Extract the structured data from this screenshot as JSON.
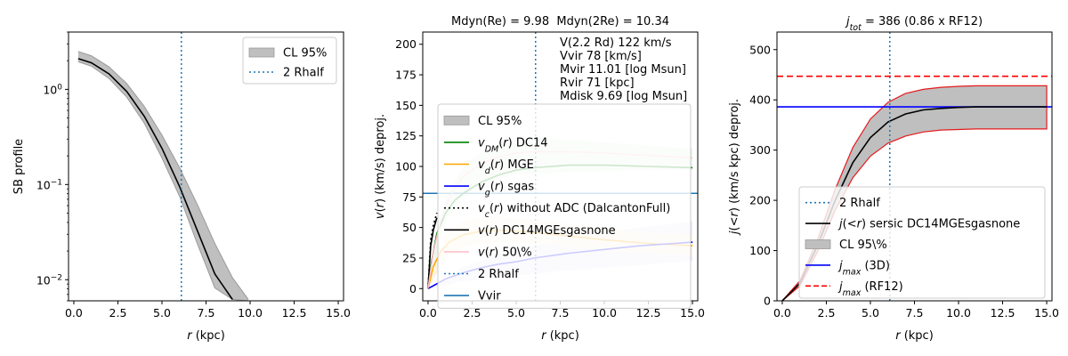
{
  "chart_data": [
    {
      "type": "line",
      "title": "",
      "xlabel": "r (kpc)",
      "ylabel": "SB profile",
      "xlim": [
        -0.3,
        15.3
      ],
      "yscale": "log",
      "ylim": [
        0.006,
        4.0
      ],
      "xticks": [
        "0.0",
        "2.5",
        "5.0",
        "7.5",
        "10.0",
        "12.5",
        "15.0"
      ],
      "xtick_values": [
        0,
        2.5,
        5,
        7.5,
        10,
        12.5,
        15
      ],
      "yticks": [
        {
          "label": "10^0",
          "value": 1
        },
        {
          "label": "10^-1",
          "value": 0.1
        },
        {
          "label": "10^-2",
          "value": 0.01
        }
      ],
      "series": [
        {
          "name": "SB",
          "color": "#000000",
          "x": [
            0.25,
            1,
            2,
            3,
            4,
            5,
            6,
            7,
            8,
            9
          ],
          "y": [
            2.1,
            1.9,
            1.45,
            0.95,
            0.52,
            0.24,
            0.095,
            0.033,
            0.0115,
            0.0062
          ]
        },
        {
          "name": "CL 95%",
          "kind": "band",
          "color": "#bfbfbf",
          "x": [
            0.25,
            1,
            2,
            3,
            4,
            5,
            6,
            7,
            8,
            9,
            9.9
          ],
          "low": [
            1.95,
            1.75,
            1.3,
            0.83,
            0.44,
            0.19,
            0.075,
            0.024,
            0.0082,
            0.0062,
            0.006
          ],
          "high": [
            2.5,
            2.25,
            1.72,
            1.15,
            0.66,
            0.33,
            0.15,
            0.062,
            0.024,
            0.0105,
            0.0062
          ]
        }
      ],
      "vline": {
        "x": 6.1,
        "label": "2 Rhalf",
        "color": "#1f77b4"
      },
      "legend": {
        "position": "top-right",
        "entries": [
          {
            "label": "CL 95%",
            "kind": "patch",
            "color": "#bfbfbf"
          },
          {
            "label": "2 Rhalf",
            "kind": "dotted",
            "color": "#1f77b4"
          }
        ]
      }
    },
    {
      "type": "line",
      "title": "Mdyn(Re) = 9.98  Mdyn(2Re) = 10.34",
      "xlabel": "r (kpc)",
      "ylabel": "v(r) (km/s) deproj.",
      "xlim": [
        -0.3,
        15.3
      ],
      "ylim": [
        -10,
        210
      ],
      "xticks": [
        "0.0",
        "2.5",
        "5.0",
        "7.5",
        "10.0",
        "12.5",
        "15.0"
      ],
      "xtick_values": [
        0,
        2.5,
        5,
        7.5,
        10,
        12.5,
        15
      ],
      "yticks": [
        "0",
        "25",
        "50",
        "75",
        "100",
        "125",
        "150",
        "175",
        "200"
      ],
      "ytick_values": [
        0,
        25,
        50,
        75,
        100,
        125,
        150,
        175,
        200
      ],
      "series": [
        {
          "name": "v_DM(r) DC14",
          "color": "#008000",
          "x": [
            0,
            0.2,
            0.5,
            1,
            1.5,
            2,
            3,
            4,
            5,
            6,
            8,
            10,
            12.5,
            15
          ],
          "y": [
            0,
            22,
            45,
            62,
            72,
            78,
            87,
            93,
            97,
            99,
            101,
            101,
            100,
            99
          ]
        },
        {
          "name": "v_d(r) MGE",
          "color": "#ffa500",
          "x": [
            0,
            0.3,
            0.7,
            1.2,
            2,
            3,
            4,
            5,
            6,
            8,
            10,
            12.5,
            15
          ],
          "y": [
            0,
            18,
            30,
            38,
            44,
            47,
            48,
            47,
            46,
            43,
            40,
            37,
            35
          ]
        },
        {
          "name": "v_g(r) sgas",
          "color": "#0000ff",
          "x": [
            0,
            1,
            2,
            3,
            4,
            5,
            6,
            8,
            10,
            12,
            14,
            15
          ],
          "y": [
            0,
            8,
            13,
            17,
            20,
            22,
            25,
            29,
            32,
            35,
            37,
            38
          ]
        },
        {
          "name": "v_c(r) without ADC (DalcantonFull)",
          "color": "#000000",
          "style": "dotted",
          "x": [
            0,
            0.15,
            0.3,
            0.5
          ],
          "y": [
            0,
            40,
            52,
            62
          ]
        },
        {
          "name": "v(r) DC14MGEsgasnone",
          "color": "#000000",
          "x": [
            0,
            0.15,
            0.3,
            0.5
          ],
          "y": [
            0,
            35,
            48,
            58
          ]
        },
        {
          "name": "v(r) 50\\%",
          "color": "#ffc0cb",
          "x": [
            0,
            0.3,
            0.7,
            1,
            1.5,
            2,
            3,
            4,
            5,
            6,
            8,
            10,
            12.5,
            15
          ],
          "y": [
            0,
            30,
            55,
            68,
            82,
            92,
            102,
            108,
            111,
            112,
            112,
            111,
            109,
            107
          ]
        },
        {
          "name": "CL 95%",
          "kind": "band",
          "color": "#e6f2e6",
          "x": [
            0,
            1,
            2,
            3,
            4,
            5,
            6,
            8,
            10,
            12.5,
            15
          ],
          "low": [
            0,
            55,
            75,
            85,
            90,
            93,
            94,
            95,
            96,
            97,
            97
          ],
          "high": [
            0,
            75,
            100,
            112,
            118,
            122,
            123,
            122,
            120,
            117,
            115
          ]
        },
        {
          "name": "CL 95% sgas",
          "kind": "band",
          "color": "#e6e6fa",
          "x": [
            0,
            2,
            4,
            6,
            8,
            10,
            12,
            15
          ],
          "low": [
            0,
            6,
            9,
            12,
            15,
            17,
            19,
            23
          ],
          "high": [
            0,
            18,
            28,
            35,
            40,
            46,
            50,
            55
          ]
        },
        {
          "name": "CL 95% MGE",
          "kind": "band",
          "color": "#fdf0d5",
          "x": [
            0,
            1,
            2,
            3,
            4,
            5,
            6,
            8,
            10,
            12.5,
            15
          ],
          "low": [
            0,
            25,
            33,
            37,
            38,
            38,
            37,
            34,
            31,
            29,
            27
          ],
          "high": [
            0,
            45,
            55,
            58,
            59,
            58,
            57,
            53,
            49,
            46,
            44
          ]
        }
      ],
      "vline": {
        "x": 6.1,
        "label": "2 Rhalf",
        "color": "#1f77b4"
      },
      "hline": {
        "y": 78,
        "label": "Vvir",
        "color": "#1f77b4"
      },
      "annotation": [
        "V(2.2 Rd) 122 km/s",
        "Vvir 78 [km/s]",
        "Mvir 11.01 [log Msun]",
        "Rvir 71 [kpc]",
        "Mdisk 9.69 [log Msun]"
      ],
      "legend": {
        "position": "lower-right",
        "entries": [
          {
            "label": "CL 95%",
            "kind": "patch",
            "color": "#bfbfbf"
          },
          {
            "label": "v_DM(r) DC14",
            "kind": "line",
            "color": "#008000"
          },
          {
            "label": "v_d(r) MGE",
            "kind": "line",
            "color": "#ffa500"
          },
          {
            "label": "v_g(r) sgas",
            "kind": "line",
            "color": "#0000ff"
          },
          {
            "label": "v_c(r) without ADC (DalcantonFull)",
            "kind": "dotted",
            "color": "#000000"
          },
          {
            "label": "v(r) DC14MGEsgasnone",
            "kind": "line",
            "color": "#000000"
          },
          {
            "label": "v(r) 50\\%",
            "kind": "line",
            "color": "#ffc0cb"
          },
          {
            "label": "2 Rhalf",
            "kind": "dotted",
            "color": "#1f77b4"
          },
          {
            "label": "Vvir",
            "kind": "line",
            "color": "#1f77b4"
          }
        ]
      }
    },
    {
      "type": "line",
      "title": "j_tot = 386 (0.86 x RF12)",
      "xlabel": "r (kpc)",
      "ylabel": "j(<r) (km/s kpc) deproj.",
      "xlim": [
        -0.3,
        15.3
      ],
      "ylim": [
        0,
        535
      ],
      "xticks": [
        "0.0",
        "2.5",
        "5.0",
        "7.5",
        "10.0",
        "12.5",
        "15.0"
      ],
      "xtick_values": [
        0,
        2.5,
        5,
        7.5,
        10,
        12.5,
        15
      ],
      "yticks": [
        "0",
        "100",
        "200",
        "300",
        "400",
        "500"
      ],
      "ytick_values": [
        0,
        100,
        200,
        300,
        400,
        500
      ],
      "series": [
        {
          "name": "j(<r) sersic DC14MGEsgasnone",
          "color": "#000000",
          "x": [
            0,
            1,
            2,
            3,
            4,
            5,
            6,
            7,
            8,
            9,
            10,
            11,
            12,
            13,
            15
          ],
          "y": [
            0,
            35,
            110,
            200,
            275,
            325,
            356,
            372,
            380,
            383,
            385,
            386,
            386,
            386,
            386
          ]
        },
        {
          "name": "CL 95\\%",
          "kind": "band",
          "color": "#bfbfbf",
          "x": [
            0,
            1,
            2,
            3,
            4,
            5,
            6,
            7,
            8,
            9,
            10,
            11,
            12,
            13,
            15
          ],
          "low": [
            0,
            30,
            98,
            180,
            245,
            288,
            314,
            328,
            336,
            340,
            341,
            342,
            342,
            342,
            342
          ],
          "high": [
            0,
            40,
            122,
            222,
            305,
            362,
            395,
            413,
            421,
            425,
            427,
            428,
            428,
            428,
            428
          ]
        },
        {
          "name": "j_max (3D)",
          "kind": "hline",
          "color": "#0000ff",
          "y": 386
        },
        {
          "name": "j_max (RF12)",
          "kind": "hline-dashed",
          "color": "#ff0000",
          "y": 447
        }
      ],
      "vline": {
        "x": 6.1,
        "label": "2 Rhalf",
        "color": "#1f77b4"
      },
      "legend": {
        "position": "lower-right",
        "entries": [
          {
            "label": "2 Rhalf",
            "kind": "dotted",
            "color": "#1f77b4"
          },
          {
            "label": "j(<r) sersic DC14MGEsgasnone",
            "kind": "line",
            "color": "#000000"
          },
          {
            "label": "CL 95\\%",
            "kind": "patch",
            "color": "#bfbfbf"
          },
          {
            "label": "j_max (3D)",
            "kind": "line",
            "color": "#0000ff"
          },
          {
            "label": "j_max (RF12)",
            "kind": "dashed",
            "color": "#ff0000"
          }
        ]
      }
    }
  ]
}
